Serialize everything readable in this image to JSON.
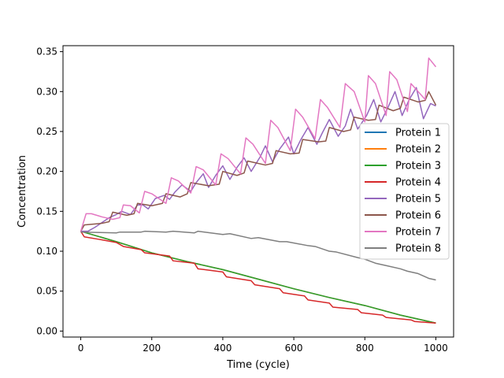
{
  "chart_data": {
    "type": "line",
    "title": "",
    "xlabel": "Time (cycle)",
    "ylabel": "Concentration",
    "xlim": [
      -50,
      1050
    ],
    "ylim": [
      -0.0075,
      0.3575
    ],
    "xticks": [
      0,
      200,
      400,
      600,
      800,
      1000
    ],
    "xtick_labels": [
      "0",
      "200",
      "400",
      "600",
      "800",
      "1000"
    ],
    "yticks": [
      0.0,
      0.05,
      0.1,
      0.15,
      0.2,
      0.25,
      0.3,
      0.35
    ],
    "ytick_labels": [
      "0.00",
      "0.05",
      "0.10",
      "0.15",
      "0.20",
      "0.25",
      "0.30",
      "0.35"
    ],
    "grid": false,
    "legend_position": "center-right",
    "series": [
      {
        "name": "Protein 1",
        "color": "#1f77b4",
        "x": [
          0,
          100,
          150,
          200,
          300,
          400,
          500,
          600,
          700,
          800,
          900,
          1000
        ],
        "y": [
          0.125,
          0.112,
          0.105,
          0.098,
          0.087,
          0.077,
          0.065,
          0.053,
          0.042,
          0.032,
          0.02,
          0.01
        ]
      },
      {
        "name": "Protein 2",
        "color": "#ff7f0e",
        "x": [
          0,
          100,
          150,
          200,
          300,
          400,
          500,
          600,
          700,
          800,
          900,
          1000
        ],
        "y": [
          0.125,
          0.112,
          0.105,
          0.098,
          0.087,
          0.077,
          0.065,
          0.053,
          0.042,
          0.032,
          0.02,
          0.01
        ]
      },
      {
        "name": "Protein 3",
        "color": "#2ca02c",
        "x": [
          0,
          100,
          150,
          200,
          300,
          400,
          500,
          600,
          700,
          800,
          900,
          1000
        ],
        "y": [
          0.125,
          0.112,
          0.105,
          0.098,
          0.087,
          0.077,
          0.065,
          0.053,
          0.042,
          0.032,
          0.02,
          0.01
        ]
      },
      {
        "name": "Protein 4",
        "color": "#d62728",
        "x": [
          0,
          10,
          50,
          100,
          120,
          170,
          180,
          250,
          260,
          320,
          330,
          400,
          410,
          480,
          490,
          560,
          570,
          630,
          640,
          700,
          710,
          780,
          790,
          850,
          860,
          930,
          940,
          1000
        ],
        "y": [
          0.125,
          0.118,
          0.115,
          0.111,
          0.106,
          0.102,
          0.098,
          0.094,
          0.088,
          0.085,
          0.078,
          0.074,
          0.068,
          0.063,
          0.058,
          0.053,
          0.048,
          0.044,
          0.039,
          0.035,
          0.03,
          0.027,
          0.023,
          0.02,
          0.017,
          0.014,
          0.012,
          0.01
        ]
      },
      {
        "name": "Protein 5",
        "color": "#9467bd",
        "x": [
          0,
          20,
          40,
          60,
          80,
          100,
          115,
          140,
          160,
          175,
          190,
          210,
          235,
          250,
          265,
          285,
          310,
          325,
          345,
          360,
          380,
          400,
          420,
          440,
          460,
          480,
          505,
          520,
          540,
          560,
          585,
          600,
          620,
          640,
          665,
          680,
          700,
          725,
          745,
          760,
          780,
          805,
          825,
          845,
          865,
          885,
          905,
          925,
          945,
          965,
          985,
          1000
        ],
        "y": [
          0.125,
          0.125,
          0.13,
          0.136,
          0.142,
          0.146,
          0.15,
          0.146,
          0.158,
          0.158,
          0.153,
          0.166,
          0.17,
          0.165,
          0.174,
          0.183,
          0.175,
          0.186,
          0.197,
          0.18,
          0.195,
          0.207,
          0.19,
          0.205,
          0.217,
          0.2,
          0.218,
          0.232,
          0.212,
          0.228,
          0.243,
          0.222,
          0.24,
          0.255,
          0.234,
          0.248,
          0.265,
          0.244,
          0.257,
          0.278,
          0.253,
          0.27,
          0.29,
          0.262,
          0.28,
          0.3,
          0.27,
          0.29,
          0.305,
          0.266,
          0.285,
          0.282
        ]
      },
      {
        "name": "Protein 6",
        "color": "#8c564b",
        "x": [
          0,
          10,
          60,
          80,
          90,
          130,
          150,
          160,
          200,
          230,
          240,
          280,
          300,
          310,
          360,
          390,
          400,
          440,
          460,
          470,
          520,
          540,
          550,
          590,
          615,
          625,
          670,
          690,
          700,
          740,
          760,
          770,
          810,
          830,
          840,
          880,
          900,
          910,
          950,
          970,
          980,
          1000
        ],
        "y": [
          0.125,
          0.133,
          0.135,
          0.137,
          0.149,
          0.145,
          0.147,
          0.16,
          0.157,
          0.16,
          0.172,
          0.168,
          0.172,
          0.186,
          0.182,
          0.184,
          0.2,
          0.195,
          0.198,
          0.213,
          0.208,
          0.21,
          0.226,
          0.222,
          0.223,
          0.24,
          0.237,
          0.238,
          0.255,
          0.25,
          0.252,
          0.268,
          0.264,
          0.265,
          0.283,
          0.276,
          0.279,
          0.293,
          0.287,
          0.289,
          0.3,
          0.283
        ]
      },
      {
        "name": "Protein 7",
        "color": "#e377c2",
        "x": [
          0,
          15,
          30,
          60,
          90,
          110,
          120,
          140,
          165,
          180,
          200,
          240,
          255,
          275,
          310,
          325,
          345,
          380,
          395,
          415,
          450,
          465,
          485,
          520,
          535,
          555,
          590,
          605,
          625,
          660,
          675,
          695,
          730,
          745,
          770,
          800,
          810,
          830,
          860,
          870,
          890,
          920,
          930,
          950,
          970,
          980,
          1000
        ],
        "y": [
          0.125,
          0.147,
          0.147,
          0.143,
          0.14,
          0.142,
          0.158,
          0.157,
          0.148,
          0.175,
          0.172,
          0.16,
          0.192,
          0.188,
          0.173,
          0.206,
          0.202,
          0.183,
          0.222,
          0.216,
          0.197,
          0.242,
          0.234,
          0.21,
          0.264,
          0.255,
          0.226,
          0.278,
          0.268,
          0.241,
          0.29,
          0.28,
          0.255,
          0.31,
          0.3,
          0.262,
          0.32,
          0.31,
          0.27,
          0.325,
          0.315,
          0.275,
          0.31,
          0.3,
          0.29,
          0.342,
          0.331
        ]
      },
      {
        "name": "Protein 8",
        "color": "#7f7f7f",
        "x": [
          0,
          100,
          110,
          170,
          180,
          240,
          260,
          320,
          330,
          400,
          420,
          480,
          500,
          560,
          580,
          640,
          660,
          700,
          720,
          780,
          800,
          830,
          860,
          900,
          920,
          950,
          980,
          1000
        ],
        "y": [
          0.124,
          0.123,
          0.124,
          0.124,
          0.125,
          0.124,
          0.125,
          0.123,
          0.125,
          0.121,
          0.122,
          0.116,
          0.117,
          0.112,
          0.112,
          0.107,
          0.106,
          0.1,
          0.099,
          0.092,
          0.09,
          0.085,
          0.082,
          0.078,
          0.075,
          0.072,
          0.066,
          0.064
        ]
      }
    ]
  }
}
